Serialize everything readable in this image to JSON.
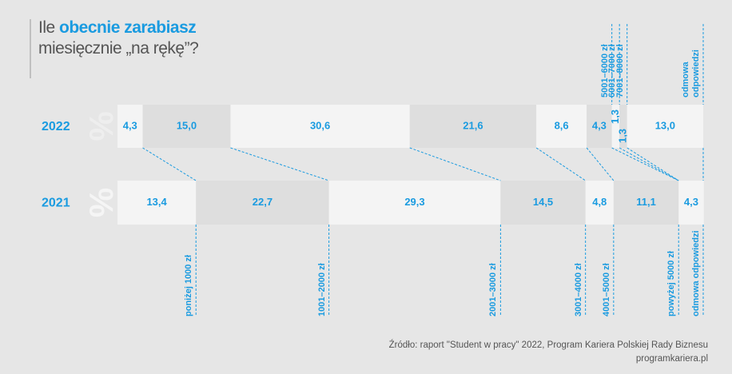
{
  "chart_data": {
    "type": "stacked-bar",
    "title": {
      "lead": "Ile ",
      "highlight": "obecnie zarabiasz",
      "rest": "miesięcznie „na rękę”?"
    },
    "unit_label": "%",
    "xlim": [
      0,
      100
    ],
    "color": "#1a9be0",
    "series": [
      {
        "name": "2022",
        "categories": [
          "poniżej 1000 zł",
          "1001–2000 zł",
          "2001–3000 zł",
          "3001–4000 zł",
          "4001–5000 zł",
          "5001–6000 zł",
          "6001–7000 zł",
          "7001–8000 zł",
          "odmowa odpowiedzi"
        ],
        "values": [
          4.3,
          15.0,
          30.6,
          21.6,
          8.6,
          4.3,
          1.3,
          1.3,
          13.0
        ],
        "value_labels": [
          "4,3",
          "15,0",
          "30,6",
          "21,6",
          "8,6",
          "4,3",
          "1,3",
          "1,3",
          "13,0"
        ]
      },
      {
        "name": "2021",
        "categories": [
          "poniżej 1000 zł",
          "1001–2000 zł",
          "2001–3000 zł",
          "3001–4000 zł",
          "4001–5000 zł",
          "powyżej 5000 zł",
          "odmowa odpowiedzi"
        ],
        "values": [
          13.4,
          22.7,
          29.3,
          14.5,
          4.8,
          11.1,
          4.3
        ],
        "value_labels": [
          "13,4",
          "22,7",
          "29,3",
          "14,5",
          "4,8",
          "11,1",
          "4,3"
        ]
      }
    ],
    "source": "Źródło: raport \"Student w pracy\" 2022, Program Kariera Polskiej Rady Biznesu",
    "website": "programkariera.pl"
  }
}
